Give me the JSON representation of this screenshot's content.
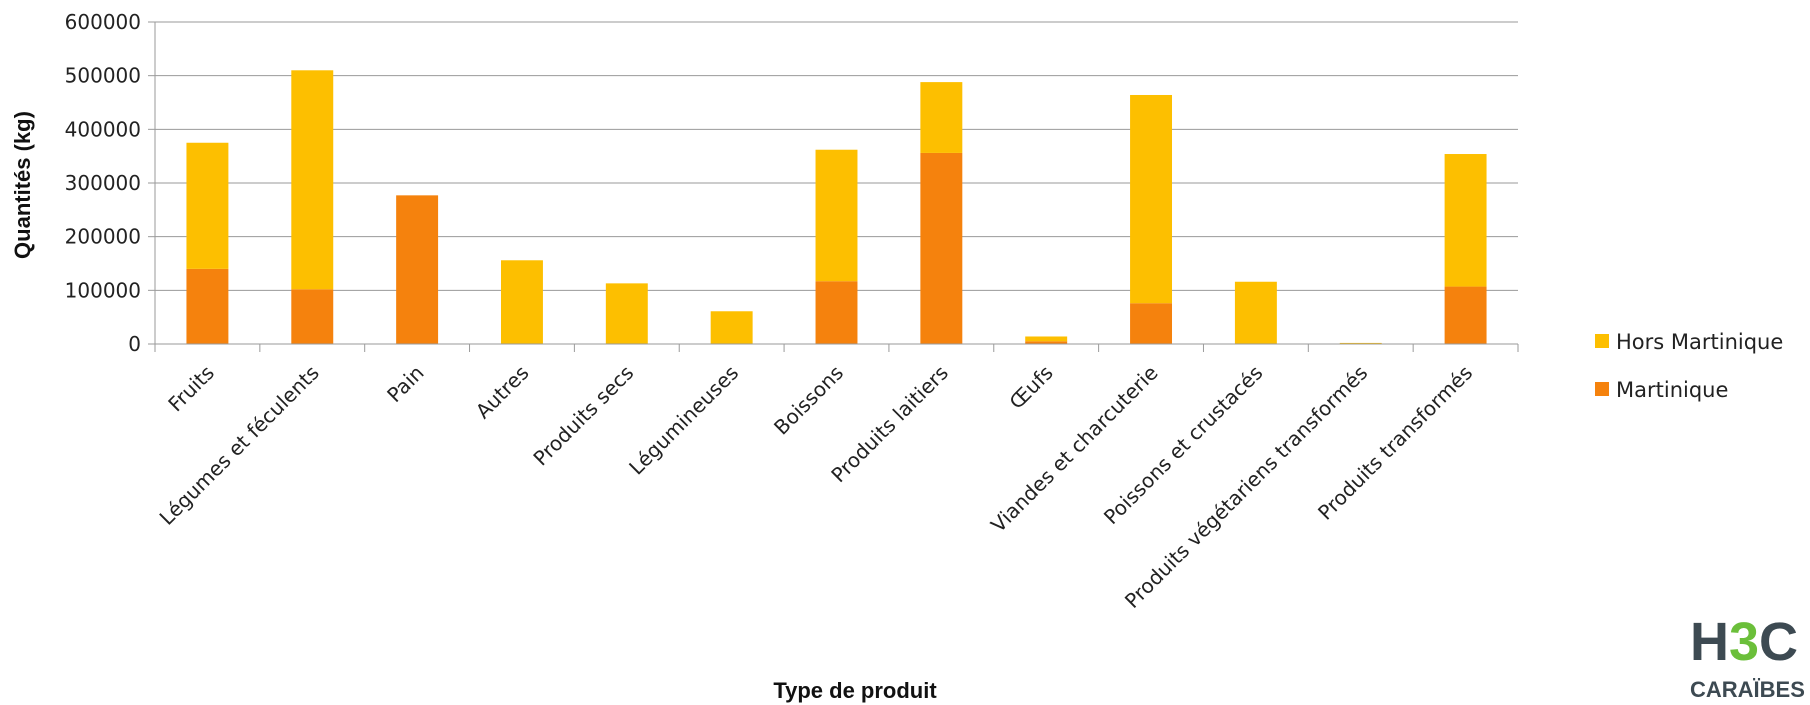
{
  "chart_data": {
    "type": "bar",
    "stacked": true,
    "title": "",
    "xlabel": "Type de produit",
    "ylabel": "Quantités (kg)",
    "ylim": [
      0,
      600000
    ],
    "yticks": [
      0,
      100000,
      200000,
      300000,
      400000,
      500000,
      600000
    ],
    "grid": true,
    "legend_position": "right",
    "categories": [
      "Fruits",
      "Légumes et féculents",
      "Pain",
      "Autres",
      "Produits secs",
      "Légumineuses",
      "Boissons",
      "Produits laitiers",
      "Œufs",
      "Viandes et charcuterie",
      "Poissons et crustacés",
      "Produits végétariens transformés",
      "Produits transformés"
    ],
    "series": [
      {
        "name": "Martinique",
        "color": "#f5820d",
        "values": [
          140000,
          102000,
          277000,
          0,
          0,
          0,
          117000,
          356000,
          5000,
          76000,
          0,
          0,
          107000
        ]
      },
      {
        "name": "Hors Martinique",
        "color": "#fdbf00",
        "values": [
          235000,
          408000,
          0,
          156000,
          113000,
          61000,
          245000,
          132000,
          9000,
          388000,
          116000,
          2000,
          247000
        ]
      }
    ]
  },
  "logo": {
    "main": "H3C",
    "sub": "CARAÏBES",
    "green": "#6bbf3a",
    "dark": "#3d4a52"
  }
}
